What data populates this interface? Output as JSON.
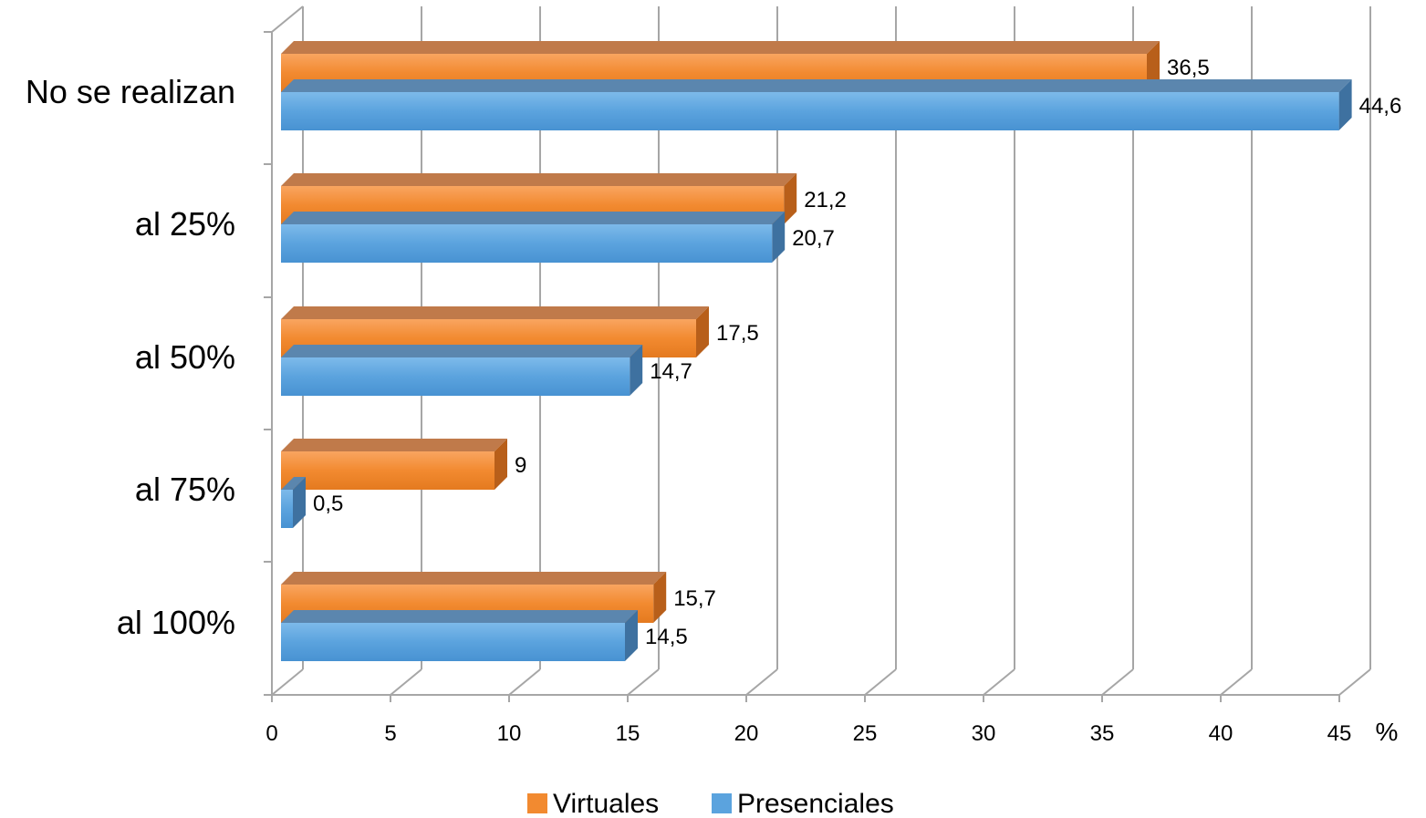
{
  "chart_data": {
    "type": "bar",
    "orientation": "horizontal",
    "style": "3d-clustered",
    "categories": [
      "No se realizan",
      "al 25%",
      "al 50%",
      "al 75%",
      "al 100%"
    ],
    "series": [
      {
        "name": "Virtuales",
        "values": [
          36.5,
          21.2,
          17.5,
          9,
          15.7
        ],
        "labels": [
          "36,5",
          "21,2",
          "17,5",
          "9",
          "15,7"
        ],
        "color": "#F28A30"
      },
      {
        "name": "Presenciales",
        "values": [
          44.6,
          20.7,
          14.7,
          0.5,
          14.5
        ],
        "labels": [
          "44,6",
          "20,7",
          "14,7",
          "0,5",
          "14,5"
        ],
        "color": "#5BA3DE"
      }
    ],
    "x_ticks": [
      "0",
      "5",
      "10",
      "15",
      "20",
      "25",
      "30",
      "35",
      "40",
      "45"
    ],
    "xlim": [
      0,
      45
    ],
    "x_unit": "%",
    "grid": true,
    "legend_position": "bottom"
  }
}
